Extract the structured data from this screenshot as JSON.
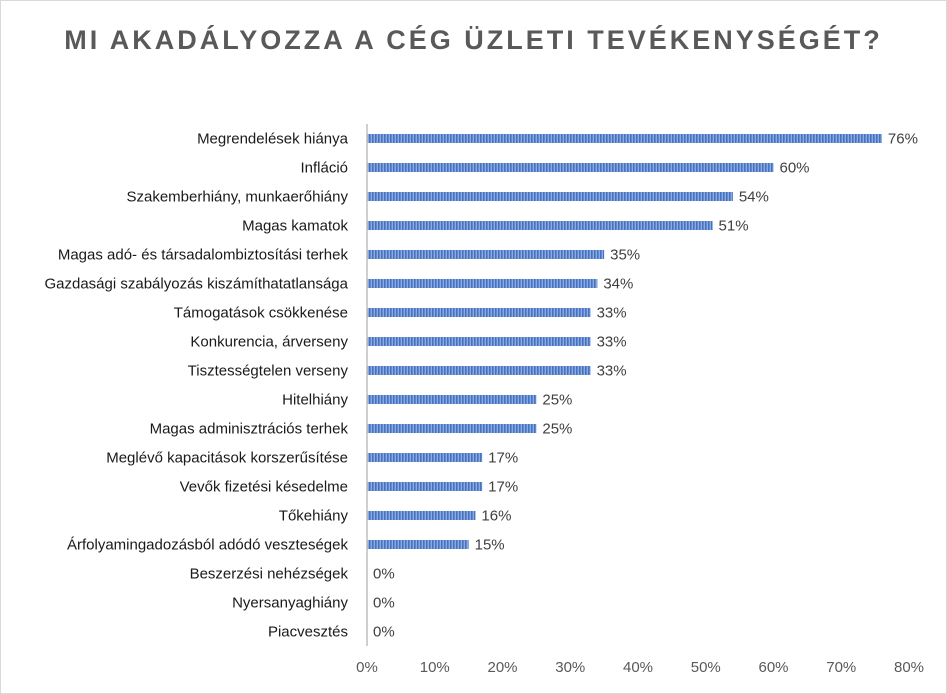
{
  "chart_data": {
    "type": "bar",
    "orientation": "horizontal",
    "title": "MI AKADÁLYOZZA A CÉG ÜZLETI TEVÉKENYSÉGÉT?",
    "categories": [
      "Megrendelések hiánya",
      "Infláció",
      "Szakemberhiány, munkaerőhiány",
      "Magas kamatok",
      "Magas adó- és társadalombiztosítási terhek",
      "Gazdasági szabályozás kiszámíthatatlansága",
      "Támogatások csökkenése",
      "Konkurencia, árverseny",
      "Tisztességtelen verseny",
      "Hitelhiány",
      "Magas adminisztrációs terhek",
      "Meglévő kapacitások korszerűsítése",
      "Vevők fizetési késedelme",
      "Tőkehiány",
      "Árfolyamingadozásból adódó veszteségek",
      "Beszerzési nehézségek",
      "Nyersanyaghiány",
      "Piacvesztés"
    ],
    "values": [
      76,
      60,
      54,
      51,
      35,
      34,
      33,
      33,
      33,
      25,
      25,
      17,
      17,
      16,
      15,
      0,
      0,
      0
    ],
    "value_labels": [
      "76%",
      "60%",
      "54%",
      "51%",
      "35%",
      "34%",
      "33%",
      "33%",
      "33%",
      "25%",
      "25%",
      "17%",
      "17%",
      "16%",
      "15%",
      "0%",
      "0%",
      "0%"
    ],
    "xlim": [
      0,
      80
    ],
    "xticks": [
      "0%",
      "10%",
      "20%",
      "30%",
      "40%",
      "50%",
      "60%",
      "70%",
      "80%"
    ],
    "grid": false,
    "legend": "none",
    "bar_color": "#4472c4"
  }
}
